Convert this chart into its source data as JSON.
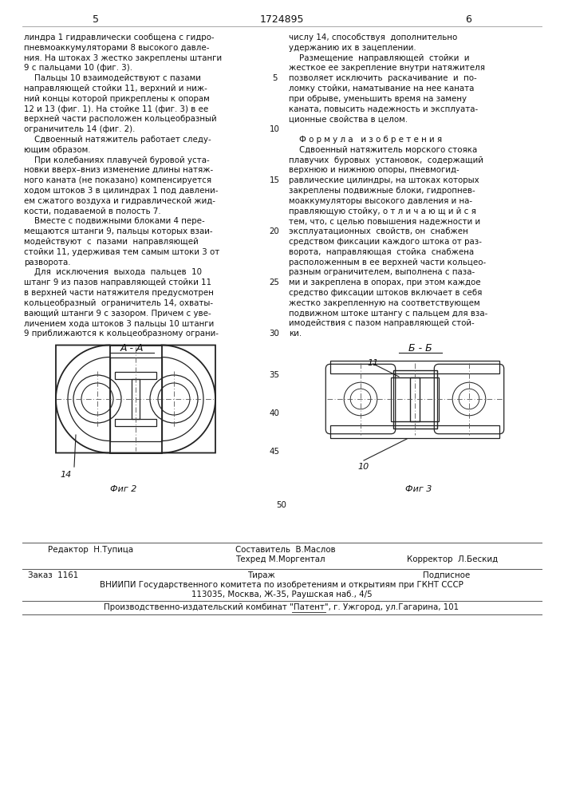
{
  "page_bg": "#ffffff",
  "text_color": "#111111",
  "header_numbers": [
    "5",
    "1724895",
    "6"
  ],
  "left_col_text": [
    "линдра 1 гидравлически сообщена с гидро-",
    "пневмоаккумуляторами 8 высокого давле-",
    "ния. На штоках 3 жестко закреплены штанги",
    "9 с пальцами 10 (фиг. 3).",
    "    Пальцы 10 взаимодействуют с пазами",
    "направляющей стойки 11, верхний и ниж-",
    "ний концы которой прикреплены к опорам",
    "12 и 13 (фиг. 1). На стойке 11 (фиг. 3) в ее",
    "верхней части расположен кольцеобразный",
    "ограничитель 14 (фиг. 2).",
    "    Сдвоенный натяжитель работает следу-",
    "ющим образом.",
    "    При колебаниях плавучей буровой уста-",
    "новки вверх–вниз изменение длины натяж-",
    "ного каната (не показано) компенсируется",
    "ходом штоков 3 в цилиндрах 1 под давлени-",
    "ем сжатого воздуха и гидравлической жид-",
    "кости, подаваемой в полость 7.",
    "    Вместе с подвижными блоками 4 пере-",
    "мещаются штанги 9, пальцы которых взаи-",
    "модействуют  с  пазами  направляющей",
    "стойки 11, удерживая тем самым штоки 3 от",
    "разворота.",
    "    Для  исключения  выхода  пальцев  10",
    "штанг 9 из пазов направляющей стойки 11",
    "в верхней части натяжителя предусмотрен",
    "кольцеобразный  ограничитель 14, охваты-",
    "вающий штанги 9 с зазором. Причем с уве-",
    "личением хода штоков 3 пальцы 10 штанги",
    "9 приближаются к кольцеобразному ограни-"
  ],
  "right_col_text": [
    "числу 14, способствуя  дополнительно",
    "удержанию их в зацеплении.",
    "    Размещение  направляющей  стойки  и",
    "жесткое ее закрепление внутри натяжителя",
    "позволяет исключить  раскачивание  и  по-",
    "ломку стойки, наматывание на нее каната",
    "при обрыве, уменьшить время на замену",
    "каната, повысить надежность и эксплуата-",
    "ционные свойства в целом.",
    "",
    "    Ф о р м у л а   и з о б р е т е н и я",
    "    Сдвоенный натяжитель морского стояка",
    "плавучих  буровых  установок,  содержащий",
    "верхнюю и нижнюю опоры, пневмогид-",
    "равлические цилиндры, на штоках которых",
    "закреплены подвижные блоки, гидропнев-",
    "моаккумуляторы высокого давления и на-",
    "правляющую стойку, о т л и ч а ю щ и й с я",
    "тем, что, с целью повышения надежности и",
    "эксплуатационных  свойств, он  снабжен",
    "средством фиксации каждого штока от раз-",
    "ворота,  направляющая  стойка  снабжена",
    "расположенным в ее верхней части кольцео-",
    "разным ограничителем, выполнена с паза-",
    "ми и закреплена в опорах, при этом каждое",
    "средство фиксации штоков включает в себя",
    "жестко закрепленную на соответствующем",
    "подвижном штоке штангу с пальцем для вза-",
    "имодействия с пазом направляющей стой-",
    "ки."
  ],
  "section_aa": "А - А",
  "section_bb": "Б - Б",
  "fig2_label": "Фиг 2",
  "fig3_label": "Фиг 3",
  "label_14": "14",
  "label_11": "11",
  "label_10": "10",
  "label_35": "35",
  "label_40": "40",
  "label_45": "45",
  "label_50": "50",
  "footer_editor": "Редактор  Н.Тупица",
  "footer_compiler_title": "Составитель  В.Маслов",
  "footer_techred": "Техред М.Моргентал",
  "footer_corrector": "Корректор  Л.Бескид",
  "footer_order": "Заказ  1161",
  "footer_tirage": "Тираж",
  "footer_podpisnoe": "Подписное",
  "footer_vniip1": "ВНИИПИ Государственного комитета по изобретениям и открытиям при ГКНТ СССР",
  "footer_vniip2": "113035, Москва, Ж-35, Раушская наб., 4/5",
  "footer_publish": "Производственно-издательский комбинат \"Патент\", г. Ужгород, ул.Гагарина, 101"
}
